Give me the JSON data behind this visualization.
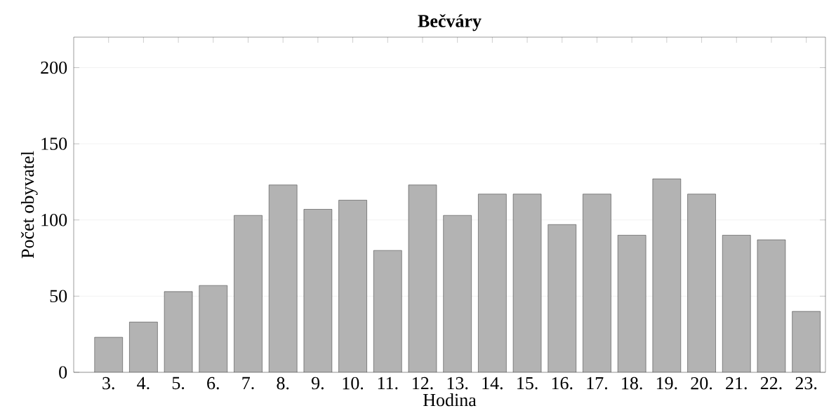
{
  "chart_data": {
    "type": "bar",
    "title": "Bečváry",
    "xlabel": "Hodina",
    "ylabel": "Počet obyvatel",
    "categories": [
      "3.",
      "4.",
      "5.",
      "6.",
      "7.",
      "8.",
      "9.",
      "10.",
      "11.",
      "12.",
      "13.",
      "14.",
      "15.",
      "16.",
      "17.",
      "18.",
      "19.",
      "20.",
      "21.",
      "22.",
      "23."
    ],
    "values": [
      23,
      33,
      53,
      57,
      103,
      123,
      107,
      113,
      80,
      123,
      103,
      117,
      117,
      97,
      117,
      90,
      127,
      117,
      90,
      87,
      40
    ],
    "color": "#b3b3b3",
    "ylim": [
      0,
      220
    ],
    "yticks": [
      0,
      50,
      100,
      150,
      200
    ],
    "grid": "y"
  }
}
